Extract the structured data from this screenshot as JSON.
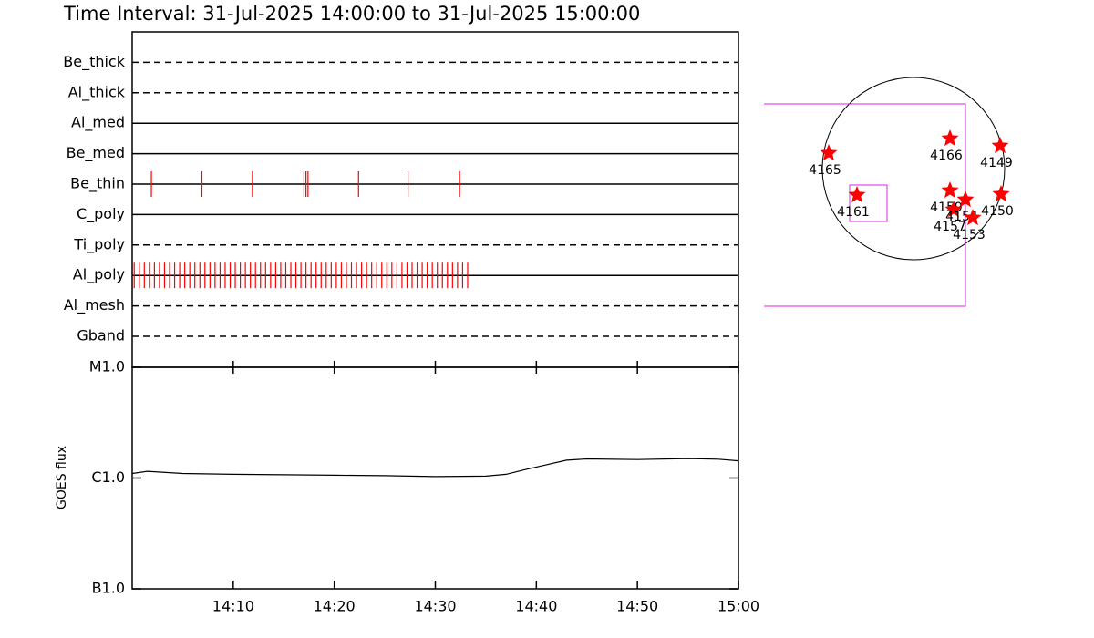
{
  "chart_data": [
    {
      "type": "timeline",
      "title": "Time Interval: 31-Jul-2025 14:00:00 to 31-Jul-2025 15:00:00",
      "xlim": [
        0,
        60
      ],
      "event_color": "#ff0000",
      "rows": [
        {
          "name": "Be_thick",
          "style": "dashed",
          "events": []
        },
        {
          "name": "Al_thick",
          "style": "dashed",
          "events": []
        },
        {
          "name": "Al_med",
          "style": "solid",
          "events": []
        },
        {
          "name": "Be_med",
          "style": "solid",
          "events": []
        },
        {
          "name": "Be_thin",
          "style": "solid",
          "events": [
            1.9,
            6.9,
            11.9,
            17.0,
            17.2,
            17.4,
            22.4,
            27.3,
            32.4
          ]
        },
        {
          "name": "C_poly",
          "style": "solid",
          "events": []
        },
        {
          "name": "Ti_poly",
          "style": "dashed",
          "events": []
        },
        {
          "name": "Al_poly",
          "style": "solid",
          "events": [
            0.2,
            0.7,
            1.2,
            1.7,
            2.2,
            2.7,
            3.2,
            3.7,
            4.2,
            4.7,
            5.2,
            5.7,
            6.2,
            6.7,
            7.2,
            7.7,
            8.2,
            8.7,
            9.2,
            9.7,
            10.2,
            10.7,
            11.2,
            11.7,
            12.2,
            12.7,
            13.2,
            13.7,
            14.2,
            14.7,
            15.2,
            15.7,
            16.2,
            16.7,
            17.2,
            17.7,
            18.2,
            18.7,
            19.2,
            19.7,
            20.2,
            20.7,
            21.2,
            21.7,
            22.2,
            22.7,
            23.2,
            23.7,
            24.2,
            24.7,
            25.2,
            25.7,
            26.2,
            26.7,
            27.2,
            27.7,
            28.2,
            28.7,
            29.2,
            29.7,
            30.2,
            30.7,
            31.2,
            31.7,
            32.2,
            32.7,
            33.2
          ]
        },
        {
          "name": "Al_mesh",
          "style": "dashed",
          "events": []
        },
        {
          "name": "Gband",
          "style": "dashed",
          "events": []
        }
      ]
    },
    {
      "type": "line",
      "ylabel": "GOES flux",
      "log": true,
      "color": "#000000",
      "x": [
        0,
        1.5,
        5,
        10,
        15,
        20,
        25,
        30,
        35,
        37,
        39,
        41,
        43,
        45,
        50,
        55,
        58,
        60
      ],
      "values": [
        1.1e-06,
        1.15e-06,
        1.1e-06,
        1.08e-06,
        1.07e-06,
        1.06e-06,
        1.05e-06,
        1.03e-06,
        1.04e-06,
        1.08e-06,
        1.2e-06,
        1.32e-06,
        1.45e-06,
        1.49e-06,
        1.47e-06,
        1.5e-06,
        1.48e-06,
        1.43e-06
      ],
      "xlim": [
        0,
        60
      ],
      "xticks": [
        {
          "value": 10,
          "label": "14:10"
        },
        {
          "value": 20,
          "label": "14:20"
        },
        {
          "value": 30,
          "label": "14:30"
        },
        {
          "value": 40,
          "label": "14:40"
        },
        {
          "value": 50,
          "label": "14:50"
        },
        {
          "value": 60,
          "label": "15:00"
        }
      ],
      "ylim": [
        1e-07,
        1e-05
      ],
      "yticks": [
        {
          "value": 1e-07,
          "label": "B1.0"
        },
        {
          "value": 1e-06,
          "label": "C1.0"
        },
        {
          "value": 1e-05,
          "label": "M1.0"
        }
      ]
    },
    {
      "type": "scatter",
      "color": "#ff0000",
      "labels": [
        "4165",
        "4161",
        "4166",
        "4149",
        "4150",
        "4159",
        "4157",
        "4154",
        "4153"
      ],
      "x": [
        -0.93,
        -0.62,
        0.4,
        0.95,
        0.96,
        0.4,
        0.44,
        0.57,
        0.65
      ],
      "y": [
        0.17,
        -0.29,
        0.33,
        0.25,
        -0.28,
        -0.24,
        -0.45,
        -0.34,
        -0.54
      ]
    }
  ]
}
